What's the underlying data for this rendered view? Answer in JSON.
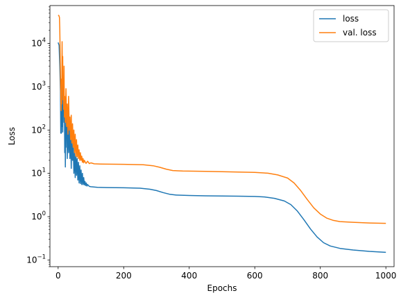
{
  "chart_data": {
    "type": "line",
    "title": "",
    "xlabel": "Epochs",
    "ylabel": "Loss",
    "xlim": [
      -25,
      1025
    ],
    "ylim": [
      0.07,
      75000
    ],
    "yscale": "log",
    "grid": false,
    "legend_position": "top-right",
    "x_ticks": [
      {
        "value": 0,
        "label": "0"
      },
      {
        "value": 200,
        "label": "200"
      },
      {
        "value": 400,
        "label": "400"
      },
      {
        "value": 600,
        "label": "600"
      },
      {
        "value": 800,
        "label": "800"
      },
      {
        "value": 1000,
        "label": "1000"
      }
    ],
    "y_ticks": [
      {
        "value": 0.1,
        "base": "10",
        "exp": "−1"
      },
      {
        "value": 1,
        "base": "10",
        "exp": "0"
      },
      {
        "value": 10,
        "base": "10",
        "exp": "1"
      },
      {
        "value": 100,
        "base": "10",
        "exp": "2"
      },
      {
        "value": 1000,
        "base": "10",
        "exp": "3"
      },
      {
        "value": 10000,
        "base": "10",
        "exp": "4"
      }
    ],
    "series": [
      {
        "name": "loss",
        "color": "#1f77b4",
        "points": [
          [
            0,
            10500
          ],
          [
            3,
            9000
          ],
          [
            5,
            3000
          ],
          [
            7,
            800
          ],
          [
            8,
            85
          ],
          [
            9,
            300
          ],
          [
            10,
            85
          ],
          [
            11,
            600
          ],
          [
            12,
            120
          ],
          [
            13,
            1200
          ],
          [
            14,
            90
          ],
          [
            15,
            400
          ],
          [
            17,
            900
          ],
          [
            18,
            150
          ],
          [
            19,
            600
          ],
          [
            20,
            30
          ],
          [
            21,
            250
          ],
          [
            22,
            14
          ],
          [
            23,
            120
          ],
          [
            24,
            40
          ],
          [
            25,
            300
          ],
          [
            27,
            100
          ],
          [
            28,
            22
          ],
          [
            30,
            200
          ],
          [
            32,
            30
          ],
          [
            34,
            120
          ],
          [
            36,
            22
          ],
          [
            38,
            90
          ],
          [
            40,
            13
          ],
          [
            42,
            60
          ],
          [
            44,
            20
          ],
          [
            46,
            45
          ],
          [
            48,
            10
          ],
          [
            50,
            30
          ],
          [
            52,
            8
          ],
          [
            54,
            28
          ],
          [
            56,
            9
          ],
          [
            58,
            22
          ],
          [
            60,
            7
          ],
          [
            62,
            18
          ],
          [
            64,
            6
          ],
          [
            66,
            15
          ],
          [
            68,
            5.8
          ],
          [
            70,
            12
          ],
          [
            72,
            5.5
          ],
          [
            74,
            10
          ],
          [
            76,
            5.5
          ],
          [
            78,
            8
          ],
          [
            80,
            5.4
          ],
          [
            82,
            6.5
          ],
          [
            84,
            5.2
          ],
          [
            86,
            6
          ],
          [
            88,
            5.1
          ],
          [
            90,
            5.5
          ],
          [
            95,
            5.0
          ],
          [
            100,
            4.9
          ],
          [
            120,
            4.75
          ],
          [
            150,
            4.7
          ],
          [
            200,
            4.65
          ],
          [
            250,
            4.55
          ],
          [
            280,
            4.3
          ],
          [
            300,
            4.0
          ],
          [
            320,
            3.6
          ],
          [
            340,
            3.3
          ],
          [
            360,
            3.15
          ],
          [
            400,
            3.08
          ],
          [
            450,
            3.03
          ],
          [
            500,
            3.0
          ],
          [
            550,
            2.97
          ],
          [
            600,
            2.93
          ],
          [
            630,
            2.85
          ],
          [
            660,
            2.65
          ],
          [
            690,
            2.3
          ],
          [
            710,
            1.9
          ],
          [
            730,
            1.35
          ],
          [
            750,
            0.85
          ],
          [
            770,
            0.52
          ],
          [
            790,
            0.34
          ],
          [
            810,
            0.25
          ],
          [
            830,
            0.21
          ],
          [
            860,
            0.185
          ],
          [
            900,
            0.17
          ],
          [
            950,
            0.158
          ],
          [
            1000,
            0.15
          ]
        ]
      },
      {
        "name": "val. loss",
        "color": "#ff7f0e",
        "points": [
          [
            0,
            45000
          ],
          [
            2,
            44000
          ],
          [
            4,
            40000
          ],
          [
            5,
            20000
          ],
          [
            6,
            8000
          ],
          [
            7,
            2500
          ],
          [
            8,
            600
          ],
          [
            9,
            280
          ],
          [
            10,
            1500
          ],
          [
            11,
            400
          ],
          [
            12,
            11000
          ],
          [
            13,
            1200
          ],
          [
            14,
            5000
          ],
          [
            15,
            500
          ],
          [
            16,
            1400
          ],
          [
            17,
            300
          ],
          [
            18,
            3000
          ],
          [
            19,
            200
          ],
          [
            20,
            600
          ],
          [
            22,
            150
          ],
          [
            24,
            900
          ],
          [
            26,
            120
          ],
          [
            28,
            400
          ],
          [
            30,
            80
          ],
          [
            32,
            600
          ],
          [
            34,
            100
          ],
          [
            36,
            200
          ],
          [
            38,
            60
          ],
          [
            40,
            220
          ],
          [
            42,
            50
          ],
          [
            44,
            140
          ],
          [
            46,
            40
          ],
          [
            48,
            100
          ],
          [
            50,
            30
          ],
          [
            52,
            80
          ],
          [
            54,
            25
          ],
          [
            56,
            60
          ],
          [
            58,
            24
          ],
          [
            60,
            45
          ],
          [
            62,
            22
          ],
          [
            64,
            35
          ],
          [
            66,
            20
          ],
          [
            68,
            30
          ],
          [
            70,
            20
          ],
          [
            72,
            25
          ],
          [
            74,
            18
          ],
          [
            76,
            22
          ],
          [
            78,
            17.5
          ],
          [
            80,
            20
          ],
          [
            85,
            17
          ],
          [
            90,
            19
          ],
          [
            95,
            16.8
          ],
          [
            100,
            17.5
          ],
          [
            110,
            16.6
          ],
          [
            130,
            16.4
          ],
          [
            200,
            16.2
          ],
          [
            260,
            15.8
          ],
          [
            290,
            15
          ],
          [
            310,
            13.8
          ],
          [
            330,
            12.5
          ],
          [
            350,
            11.6
          ],
          [
            380,
            11.3
          ],
          [
            450,
            11.1
          ],
          [
            500,
            10.9
          ],
          [
            550,
            10.7
          ],
          [
            600,
            10.5
          ],
          [
            640,
            10.1
          ],
          [
            670,
            9.2
          ],
          [
            700,
            7.8
          ],
          [
            720,
            6.0
          ],
          [
            740,
            4.0
          ],
          [
            760,
            2.5
          ],
          [
            780,
            1.6
          ],
          [
            800,
            1.15
          ],
          [
            820,
            0.92
          ],
          [
            840,
            0.82
          ],
          [
            860,
            0.77
          ],
          [
            900,
            0.74
          ],
          [
            950,
            0.715
          ],
          [
            1000,
            0.7
          ]
        ]
      }
    ]
  }
}
